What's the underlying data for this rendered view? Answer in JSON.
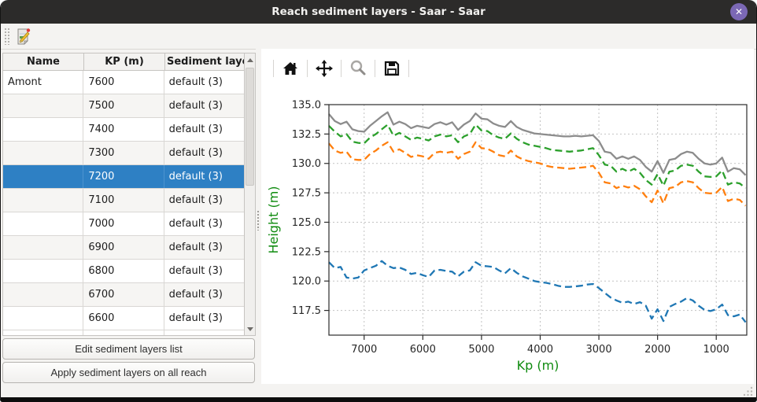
{
  "window": {
    "title": "Reach sediment layers - Saar - Saar",
    "close_glyph": "✕"
  },
  "colors": {
    "selection": "#2e80c4",
    "axis_label_green": "#0f8b0f",
    "titlebar": "#2c2b2a",
    "close_button": "#7b68b5"
  },
  "main_toolbar": {
    "edit_icon": "edit-sediment-document-icon"
  },
  "table": {
    "headers": [
      "Name",
      "KP (m)",
      "Sediment layers"
    ],
    "rows": [
      {
        "name": "Amont",
        "kp": "7600",
        "layers": "default (3)",
        "selected": false
      },
      {
        "name": "",
        "kp": "7500",
        "layers": "default (3)",
        "selected": false
      },
      {
        "name": "",
        "kp": "7400",
        "layers": "default (3)",
        "selected": false
      },
      {
        "name": "",
        "kp": "7300",
        "layers": "default (3)",
        "selected": false
      },
      {
        "name": "",
        "kp": "7200",
        "layers": "default (3)",
        "selected": true
      },
      {
        "name": "",
        "kp": "7100",
        "layers": "default (3)",
        "selected": false
      },
      {
        "name": "",
        "kp": "7000",
        "layers": "default (3)",
        "selected": false
      },
      {
        "name": "",
        "kp": "6900",
        "layers": "default (3)",
        "selected": false
      },
      {
        "name": "",
        "kp": "6800",
        "layers": "default (3)",
        "selected": false
      },
      {
        "name": "",
        "kp": "6700",
        "layers": "default (3)",
        "selected": false
      },
      {
        "name": "",
        "kp": "6600",
        "layers": "default (3)",
        "selected": false
      }
    ]
  },
  "buttons": {
    "edit": "Edit sediment layers list",
    "apply": "Apply sediment layers on all reach"
  },
  "plot_toolbar": {
    "icons": [
      "home-icon",
      "pan-icon",
      "zoom-icon",
      "save-icon"
    ]
  },
  "chart_data": {
    "type": "line",
    "xlabel": "Kp (m)",
    "ylabel": "Height (m)",
    "axis_label_color": "#0f8b0f",
    "grid": true,
    "x_reversed": true,
    "xlim": [
      7600,
      480
    ],
    "ylim": [
      115.4,
      135.0
    ],
    "x_ticks": [
      7000,
      6000,
      5000,
      4000,
      3000,
      2000,
      1000
    ],
    "y_ticks": [
      135.0,
      132.5,
      130.0,
      127.5,
      125.0,
      122.5,
      120.0,
      117.5
    ],
    "x": [
      7600,
      7500,
      7400,
      7300,
      7200,
      7100,
      7000,
      6900,
      6800,
      6700,
      6600,
      6500,
      6400,
      6300,
      6200,
      6100,
      6000,
      5900,
      5800,
      5700,
      5600,
      5500,
      5400,
      5300,
      5200,
      5100,
      5000,
      4900,
      4800,
      4700,
      4600,
      4500,
      4400,
      4300,
      4200,
      4100,
      4000,
      3900,
      3800,
      3700,
      3600,
      3500,
      3400,
      3300,
      3200,
      3100,
      3000,
      2900,
      2800,
      2700,
      2600,
      2500,
      2400,
      2300,
      2200,
      2100,
      2000,
      1900,
      1800,
      1700,
      1600,
      1500,
      1400,
      1300,
      1200,
      1100,
      1000,
      900,
      800,
      700,
      600,
      500
    ],
    "series": [
      {
        "name": "gray-solid-top",
        "color": "#8c8c8c",
        "style": "solid",
        "values": [
          134.2,
          133.6,
          133.35,
          133.55,
          132.9,
          132.75,
          132.7,
          133.2,
          133.6,
          134.0,
          134.35,
          133.3,
          133.55,
          133.35,
          133.0,
          133.2,
          133.1,
          133.0,
          133.35,
          133.5,
          133.3,
          133.5,
          132.85,
          133.3,
          133.6,
          134.25,
          133.8,
          133.75,
          133.4,
          133.2,
          133.1,
          133.6,
          133.1,
          132.85,
          132.7,
          132.55,
          132.5,
          132.45,
          132.4,
          132.35,
          132.3,
          132.3,
          132.35,
          132.3,
          132.35,
          132.4,
          131.9,
          131.0,
          130.9,
          130.4,
          130.6,
          130.4,
          130.6,
          130.3,
          129.7,
          129.3,
          130.2,
          129.2,
          130.3,
          130.4,
          130.8,
          131.0,
          130.9,
          130.4,
          130.0,
          129.9,
          130.0,
          130.5,
          129.3,
          129.6,
          129.5,
          129.0
        ]
      },
      {
        "name": "green-dashed",
        "color": "#2ca02c",
        "style": "dashed",
        "values": [
          133.2,
          132.7,
          132.3,
          132.5,
          131.85,
          131.75,
          131.7,
          132.2,
          132.5,
          132.9,
          133.3,
          132.35,
          132.6,
          132.3,
          132.0,
          132.2,
          132.1,
          131.95,
          132.3,
          132.45,
          132.3,
          132.4,
          131.8,
          132.3,
          132.5,
          133.3,
          132.8,
          132.75,
          132.4,
          132.2,
          132.1,
          132.55,
          132.1,
          131.8,
          131.6,
          131.5,
          131.4,
          131.3,
          131.15,
          131.1,
          131.05,
          131.0,
          131.05,
          131.1,
          131.2,
          131.3,
          130.7,
          129.9,
          129.8,
          129.3,
          129.55,
          129.3,
          129.55,
          129.2,
          128.6,
          128.2,
          129.1,
          128.1,
          129.3,
          129.4,
          129.8,
          129.9,
          129.8,
          129.3,
          128.9,
          128.85,
          128.9,
          129.4,
          128.2,
          128.4,
          128.3,
          127.9
        ]
      },
      {
        "name": "orange-dashed",
        "color": "#ff7f0e",
        "style": "dashed",
        "values": [
          131.7,
          131.1,
          130.9,
          131.0,
          130.35,
          130.3,
          130.3,
          130.8,
          131.1,
          131.5,
          131.8,
          131.0,
          131.2,
          130.9,
          130.55,
          130.7,
          130.6,
          130.4,
          130.9,
          131.0,
          130.9,
          131.0,
          130.4,
          130.8,
          131.0,
          131.8,
          131.3,
          131.25,
          131.0,
          130.7,
          130.6,
          131.1,
          130.6,
          130.35,
          130.2,
          130.1,
          130.0,
          129.8,
          129.7,
          129.65,
          129.6,
          129.55,
          129.6,
          129.65,
          129.7,
          129.8,
          129.2,
          128.4,
          128.3,
          127.9,
          128.1,
          127.95,
          128.1,
          127.8,
          127.2,
          126.7,
          127.7,
          126.6,
          127.9,
          128.0,
          128.4,
          128.5,
          128.4,
          127.9,
          127.5,
          127.45,
          127.5,
          128.0,
          126.8,
          127.0,
          126.9,
          126.4
        ]
      },
      {
        "name": "blue-dashed-bottom",
        "color": "#1f77b4",
        "style": "dashed",
        "values": [
          121.6,
          121.1,
          121.2,
          120.3,
          120.2,
          120.3,
          120.9,
          121.1,
          121.3,
          121.7,
          121.3,
          121.1,
          121.15,
          120.95,
          120.6,
          120.7,
          120.5,
          120.35,
          120.9,
          120.95,
          120.85,
          120.8,
          120.4,
          120.8,
          120.9,
          121.6,
          121.3,
          121.25,
          121.2,
          120.9,
          120.65,
          121.1,
          120.7,
          120.4,
          120.2,
          120.0,
          119.9,
          119.85,
          119.75,
          119.6,
          119.5,
          119.5,
          119.55,
          119.6,
          119.7,
          119.75,
          119.4,
          119.0,
          118.6,
          118.35,
          118.15,
          118.25,
          118.05,
          118.2,
          117.9,
          116.8,
          117.6,
          116.6,
          117.8,
          118.05,
          118.25,
          118.55,
          118.35,
          117.9,
          117.55,
          117.45,
          117.6,
          118.0,
          117.1,
          117.0,
          117.15,
          116.5
        ]
      }
    ]
  }
}
